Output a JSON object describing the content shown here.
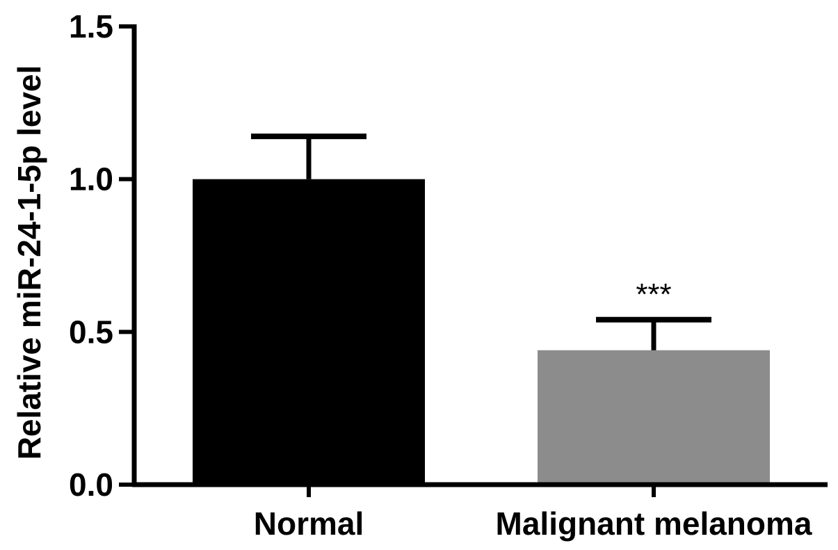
{
  "chart_data": {
    "type": "bar",
    "categories": [
      "Normal",
      "Malignant melanoma"
    ],
    "values": [
      1.0,
      0.44
    ],
    "errors": [
      0.14,
      0.1
    ],
    "bar_colors": [
      "#000000",
      "#8c8c8c"
    ],
    "annotations": [
      "",
      "***"
    ],
    "ylabel": "Relative miR-24-1-5p level",
    "xlabel": "",
    "ylim": [
      0,
      1.5
    ],
    "yticks": [
      0.0,
      0.5,
      1.0,
      1.5
    ],
    "ytick_labels": [
      "0.0",
      "0.5",
      "1.0",
      "1.5"
    ],
    "grid": false,
    "legend": "none"
  }
}
